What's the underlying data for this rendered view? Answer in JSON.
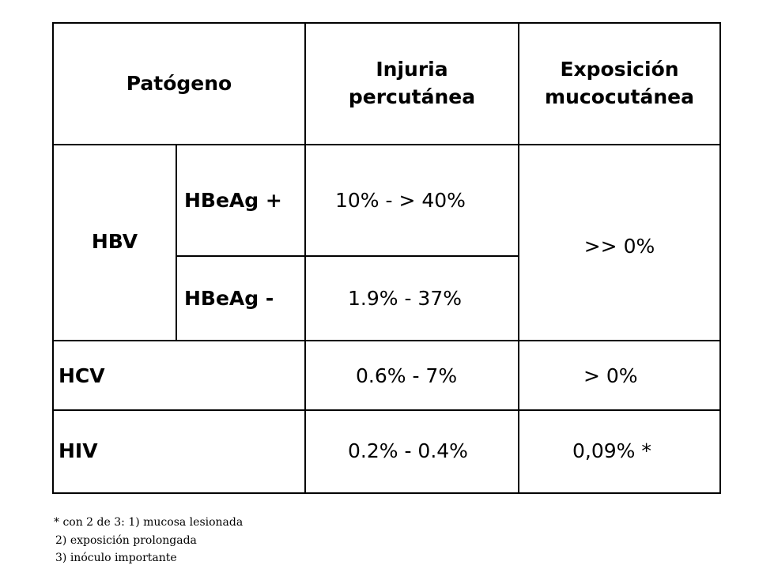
{
  "table": {
    "headers": {
      "pathogen": "Patógeno",
      "percutaneous_line1": "Injuria",
      "percutaneous_line2": "percutánea",
      "mucocutaneous_line1": "Exposición",
      "mucocutaneous_line2": "mucocutánea"
    },
    "rows": {
      "hbv": {
        "label": "HBV",
        "hbeag_pos": {
          "label": "HBeAg +",
          "percutaneous": "10% - > 40%"
        },
        "hbeag_neg": {
          "label": "HBeAg -",
          "percutaneous": "1.9% - 37%"
        },
        "mucocutaneous": ">> 0%"
      },
      "hcv": {
        "label": "HCV",
        "percutaneous": "0.6% - 7%",
        "mucocutaneous": "> 0%"
      },
      "hiv": {
        "label": "HIV",
        "percutaneous": "0.2% - 0.4%",
        "mucocutaneous": "0,09% *"
      }
    }
  },
  "footnote": {
    "line1": "* con 2 de 3:  1) mucosa lesionada",
    "line2": "2) exposición prolongada",
    "line3": "3) inóculo importante"
  }
}
